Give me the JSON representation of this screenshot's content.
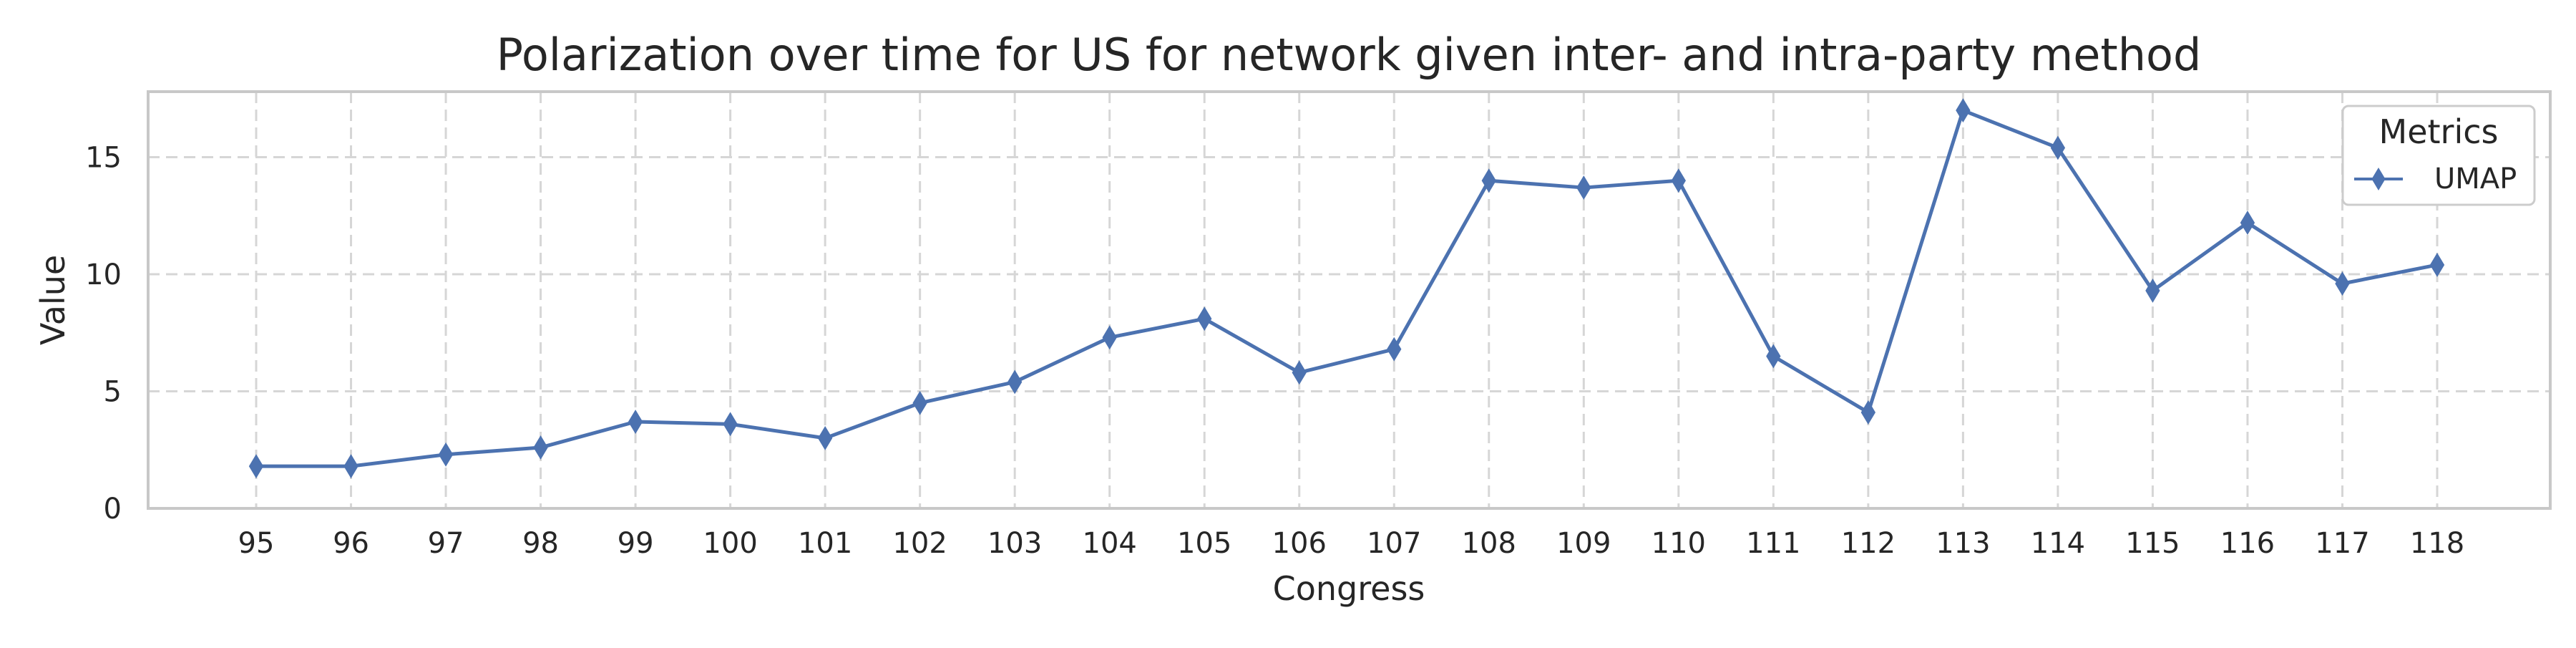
{
  "chart_data": {
    "type": "line",
    "title": "Polarization over time for US for network given inter- and intra-party method",
    "xlabel": "Congress",
    "ylabel": "Value",
    "categories": [
      "95",
      "96",
      "97",
      "98",
      "99",
      "100",
      "101",
      "102",
      "103",
      "104",
      "105",
      "106",
      "107",
      "108",
      "109",
      "110",
      "111",
      "112",
      "113",
      "114",
      "115",
      "116",
      "117",
      "118"
    ],
    "yticks": [
      "0",
      "5",
      "10",
      "15"
    ],
    "ylim": [
      0,
      17.8
    ],
    "grid": true,
    "legend": {
      "title": "Metrics",
      "placement": "top-right"
    },
    "series": [
      {
        "name": "UMAP",
        "color": "#4c72b0",
        "marker": "thin-diamond",
        "values": [
          1.8,
          1.8,
          2.3,
          2.6,
          3.7,
          3.6,
          3.0,
          4.5,
          5.4,
          7.3,
          8.1,
          5.8,
          6.8,
          14.0,
          13.7,
          14.0,
          6.5,
          4.1,
          17.0,
          15.4,
          9.3,
          12.2,
          9.6,
          10.4
        ]
      }
    ]
  }
}
